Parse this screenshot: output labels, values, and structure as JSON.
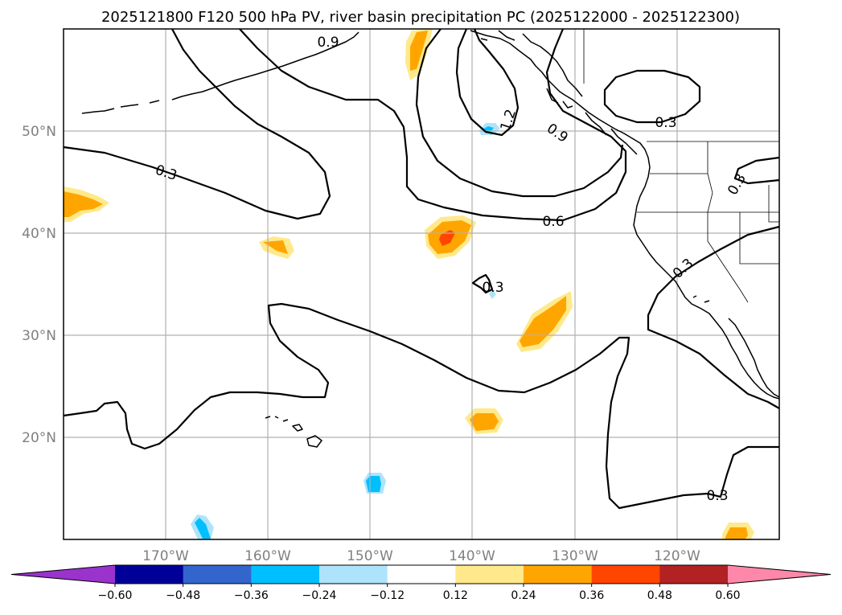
{
  "title": "2025121800 F120 500 hPa PV, river basin precipitation PC (2025122000 - 2025122300)",
  "lat_labels": [
    "50°N",
    "40°N",
    "30°N",
    "20°N"
  ],
  "lon_labels": [
    "170°W",
    "160°W",
    "150°W",
    "140°W",
    "130°W",
    "120°W"
  ],
  "colorbar": {
    "tick_labels": [
      "−0.60",
      "−0.48",
      "−0.36",
      "−0.24",
      "−0.12",
      "0.12",
      "0.24",
      "0.36",
      "0.48",
      "0.60"
    ],
    "colors": [
      "#9933cc",
      "#000099",
      "#3366cc",
      "#00bfff",
      "#aee4fb",
      "#ffffff",
      "#ffe98a",
      "#ffa500",
      "#ff4500",
      "#b22222",
      "#ff88aa"
    ]
  },
  "contour_labels": [
    "0.9",
    "1.2",
    "0.9",
    "0.3",
    "0.3",
    "0.6",
    "0.3",
    "0.3",
    "0.3",
    "0.3"
  ],
  "colors": {
    "pv_contour": "#000000",
    "grid": "#b0b0b0",
    "tick_label": "#808080"
  }
}
